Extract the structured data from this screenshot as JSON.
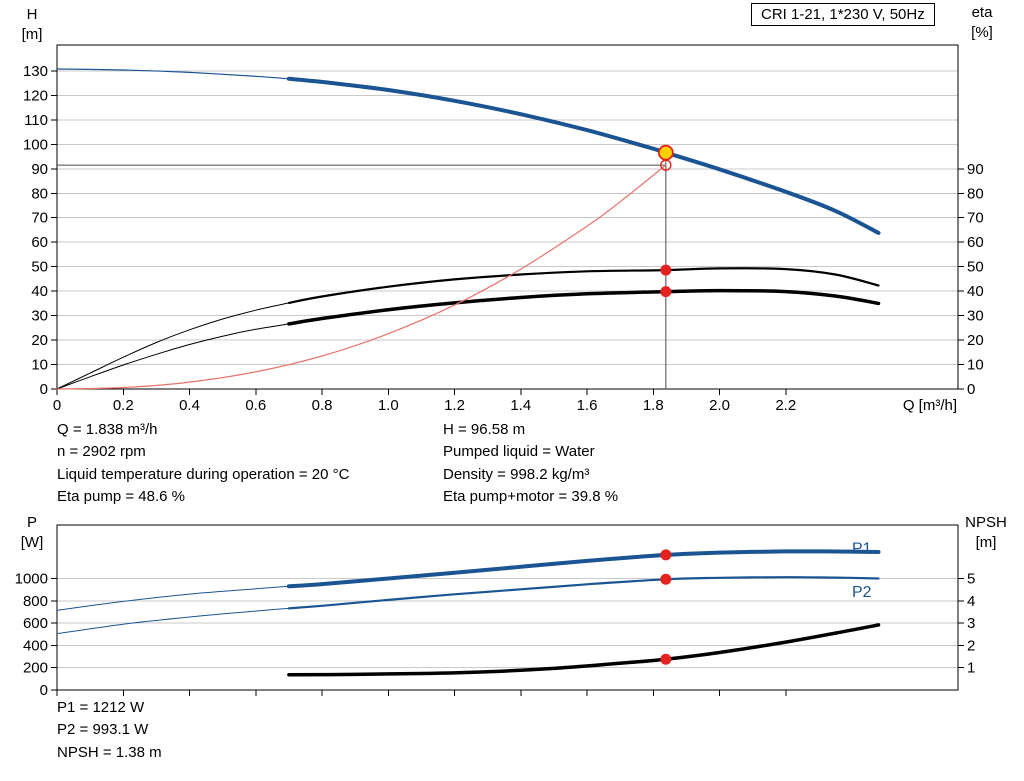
{
  "header": {
    "title_box": "CRI 1-21, 1*230 V, 50Hz"
  },
  "colors": {
    "curve_blue": "#1b5493",
    "curve_black": "#000000",
    "curve_red": "#e8736b",
    "duty_yellow": "#ffcf00",
    "dot_red": "#e42320",
    "grid": "#c9c9c9",
    "guide": "#4a4a4a"
  },
  "info_top": {
    "col1": [
      "Q = 1.838 m³/h",
      "n = 2902 rpm",
      "Liquid temperature during operation = 20 °C",
      "Eta pump = 48.6 %"
    ],
    "col2": [
      "H = 96.58 m",
      "Pumped liquid = Water",
      "Density = 998.2 kg/m³",
      "Eta pump+motor = 39.8 %"
    ]
  },
  "info_bottom": [
    "P1 = 1212 W",
    "P2 = 993.1 W",
    "NPSH = 1.38 m"
  ],
  "chart_data": [
    {
      "type": "line",
      "title": "CRI 1-21, 1*230 V, 50Hz",
      "xlabel": "Q [m³/h]",
      "grid": "horizontal",
      "legend": "none",
      "axes": {
        "x": {
          "range": [
            0,
            2.72
          ],
          "ticks": [
            0,
            0.2,
            0.4,
            0.6,
            0.8,
            1.0,
            1.2,
            1.4,
            1.6,
            1.8,
            2.0,
            2.2
          ],
          "tick_labels": [
            "0",
            "0.2",
            "0.4",
            "0.6",
            "0.8",
            "1.0",
            "1.2",
            "1.4",
            "1.6",
            "1.8",
            "2.0",
            "2.2"
          ]
        },
        "left": {
          "label": "H",
          "unit": "[m]",
          "range": [
            0,
            140.6
          ],
          "ticks": [
            0,
            10,
            20,
            30,
            40,
            50,
            60,
            70,
            80,
            90,
            100,
            110,
            120,
            130
          ]
        },
        "right": {
          "label": "eta",
          "unit": "[%]",
          "range": [
            0,
            140.6
          ],
          "ticks": [
            0,
            10,
            20,
            30,
            40,
            50,
            60,
            70,
            80,
            90
          ]
        }
      },
      "series": [
        {
          "name": "head-curve",
          "axis": "left",
          "color": "#1b5493",
          "width": 4,
          "thin_width": 1.2,
          "thick_from": 0.7,
          "points": [
            [
              0,
              130.8
            ],
            [
              0.2,
              130.4
            ],
            [
              0.4,
              129.4
            ],
            [
              0.6,
              127.8
            ],
            [
              0.7,
              126.8
            ],
            [
              0.8,
              125.5
            ],
            [
              1.0,
              122.2
            ],
            [
              1.2,
              117.8
            ],
            [
              1.4,
              112.3
            ],
            [
              1.6,
              105.8
            ],
            [
              1.8,
              98.2
            ],
            [
              1.838,
              96.58
            ],
            [
              2.0,
              89.8
            ],
            [
              2.2,
              80.6
            ],
            [
              2.35,
              72.8
            ],
            [
              2.48,
              63.8
            ]
          ]
        },
        {
          "name": "eta-pump-curve",
          "axis": "right",
          "color": "#000000",
          "width": 2.2,
          "thin_width": 1,
          "thick_from": 0.7,
          "points": [
            [
              0,
              0
            ],
            [
              0.1,
              6.5
            ],
            [
              0.2,
              13
            ],
            [
              0.3,
              19
            ],
            [
              0.4,
              24.2
            ],
            [
              0.5,
              28.6
            ],
            [
              0.6,
              32.2
            ],
            [
              0.7,
              35.2
            ],
            [
              0.8,
              37.8
            ],
            [
              1.0,
              41.8
            ],
            [
              1.2,
              44.8
            ],
            [
              1.4,
              46.8
            ],
            [
              1.6,
              48.1
            ],
            [
              1.838,
              48.6
            ],
            [
              2.0,
              49.3
            ],
            [
              2.2,
              49
            ],
            [
              2.35,
              46.8
            ],
            [
              2.48,
              42.3
            ]
          ]
        },
        {
          "name": "eta-pump-motor-curve",
          "axis": "right",
          "color": "#000000",
          "width": 3.5,
          "thin_width": 1,
          "thick_from": 0.7,
          "points": [
            [
              0,
              0
            ],
            [
              0.1,
              5
            ],
            [
              0.2,
              9.8
            ],
            [
              0.3,
              14.2
            ],
            [
              0.4,
              18.2
            ],
            [
              0.5,
              21.6
            ],
            [
              0.6,
              24.4
            ],
            [
              0.7,
              26.6
            ],
            [
              0.8,
              28.8
            ],
            [
              1.0,
              32.4
            ],
            [
              1.2,
              35.2
            ],
            [
              1.4,
              37.4
            ],
            [
              1.6,
              38.9
            ],
            [
              1.838,
              39.8
            ],
            [
              2.0,
              40.2
            ],
            [
              2.2,
              39.8
            ],
            [
              2.35,
              38
            ],
            [
              2.48,
              35
            ]
          ]
        },
        {
          "name": "system-curve",
          "axis": "left",
          "color": "#e8736b",
          "width": 1.2,
          "points": [
            [
              0,
              0
            ],
            [
              0.2,
              0.6
            ],
            [
              0.4,
              2.8
            ],
            [
              0.6,
              7
            ],
            [
              0.8,
              13.5
            ],
            [
              1.0,
              22.6
            ],
            [
              1.2,
              34.3
            ],
            [
              1.4,
              49
            ],
            [
              1.6,
              66.5
            ],
            [
              1.7,
              76.5
            ],
            [
              1.838,
              91.5
            ]
          ]
        }
      ],
      "guides": [
        {
          "type": "v",
          "x": 1.838,
          "y1": 0,
          "y2": 96.58
        },
        {
          "type": "h",
          "y": 91.5,
          "x1": 0,
          "x2": 1.838
        }
      ],
      "markers": [
        {
          "style": "open",
          "x": 1.838,
          "y": 91.5,
          "axis": "left",
          "meaning": "requested-duty-point"
        },
        {
          "style": "duty",
          "x": 1.838,
          "y": 96.58,
          "axis": "left",
          "meaning": "actual-duty-point"
        },
        {
          "style": "dot",
          "x": 1.838,
          "y": 48.6,
          "axis": "right",
          "meaning": "eta-pump-point"
        },
        {
          "style": "dot",
          "x": 1.838,
          "y": 39.8,
          "axis": "right",
          "meaning": "eta-pump-motor-point"
        }
      ],
      "annotations": []
    },
    {
      "type": "line",
      "title": "",
      "xlabel": "",
      "grid": "horizontal",
      "legend": "inline",
      "axes": {
        "x": {
          "range": [
            0,
            2.72
          ],
          "ticks": [
            0,
            0.2,
            0.4,
            0.6,
            0.8,
            1.0,
            1.2,
            1.4,
            1.6,
            1.8,
            2.0,
            2.2
          ],
          "tick_labels": []
        },
        "left": {
          "label": "P",
          "unit": "[W]",
          "range": [
            0,
            1480
          ],
          "ticks": [
            0,
            200,
            400,
            600,
            800,
            1000
          ]
        },
        "right": {
          "label": "NPSH",
          "unit": "[m]",
          "range": [
            0,
            7.4
          ],
          "ticks": [
            1,
            2,
            3,
            4,
            5
          ]
        }
      },
      "series": [
        {
          "name": "p1-curve",
          "axis": "left",
          "color": "#1b5493",
          "width": 4,
          "thin_width": 1,
          "thick_from": 0.7,
          "points": [
            [
              0,
              715
            ],
            [
              0.2,
              795
            ],
            [
              0.4,
              860
            ],
            [
              0.6,
              908
            ],
            [
              0.7,
              930
            ],
            [
              0.8,
              950
            ],
            [
              1.0,
              1000
            ],
            [
              1.2,
              1052
            ],
            [
              1.4,
              1105
            ],
            [
              1.6,
              1158
            ],
            [
              1.838,
              1212
            ],
            [
              2.0,
              1232
            ],
            [
              2.2,
              1243
            ],
            [
              2.35,
              1242
            ],
            [
              2.48,
              1238
            ]
          ]
        },
        {
          "name": "p2-curve",
          "axis": "left",
          "color": "#1b5493",
          "width": 2.2,
          "thin_width": 1,
          "thick_from": 0.7,
          "points": [
            [
              0,
              505
            ],
            [
              0.2,
              590
            ],
            [
              0.4,
              655
            ],
            [
              0.6,
              708
            ],
            [
              0.7,
              732
            ],
            [
              0.8,
              755
            ],
            [
              1.0,
              808
            ],
            [
              1.2,
              858
            ],
            [
              1.4,
              903
            ],
            [
              1.6,
              948
            ],
            [
              1.838,
              993
            ],
            [
              2.0,
              1006
            ],
            [
              2.2,
              1012
            ],
            [
              2.35,
              1008
            ],
            [
              2.48,
              1000
            ]
          ]
        },
        {
          "name": "npsh-curve",
          "axis": "right",
          "color": "#000000",
          "width": 3.5,
          "points": [
            [
              0.7,
              0.68
            ],
            [
              0.9,
              0.7
            ],
            [
              1.1,
              0.74
            ],
            [
              1.3,
              0.82
            ],
            [
              1.5,
              0.97
            ],
            [
              1.7,
              1.2
            ],
            [
              1.838,
              1.38
            ],
            [
              2.0,
              1.68
            ],
            [
              2.2,
              2.15
            ],
            [
              2.35,
              2.55
            ],
            [
              2.48,
              2.92
            ]
          ]
        }
      ],
      "guides": [],
      "markers": [
        {
          "style": "dot",
          "x": 1.838,
          "y": 1212,
          "axis": "left",
          "meaning": "p1-point"
        },
        {
          "style": "dot",
          "x": 1.838,
          "y": 993,
          "axis": "left",
          "meaning": "p2-point"
        },
        {
          "style": "dot",
          "x": 1.838,
          "y": 1.38,
          "axis": "right",
          "meaning": "npsh-point"
        }
      ],
      "annotations": [
        {
          "text": "P1",
          "x": 2.4,
          "y": 1270,
          "axis": "left",
          "color": "#1b5493"
        },
        {
          "text": "P2",
          "x": 2.4,
          "y": 880,
          "axis": "left",
          "color": "#1b5493"
        }
      ]
    }
  ]
}
